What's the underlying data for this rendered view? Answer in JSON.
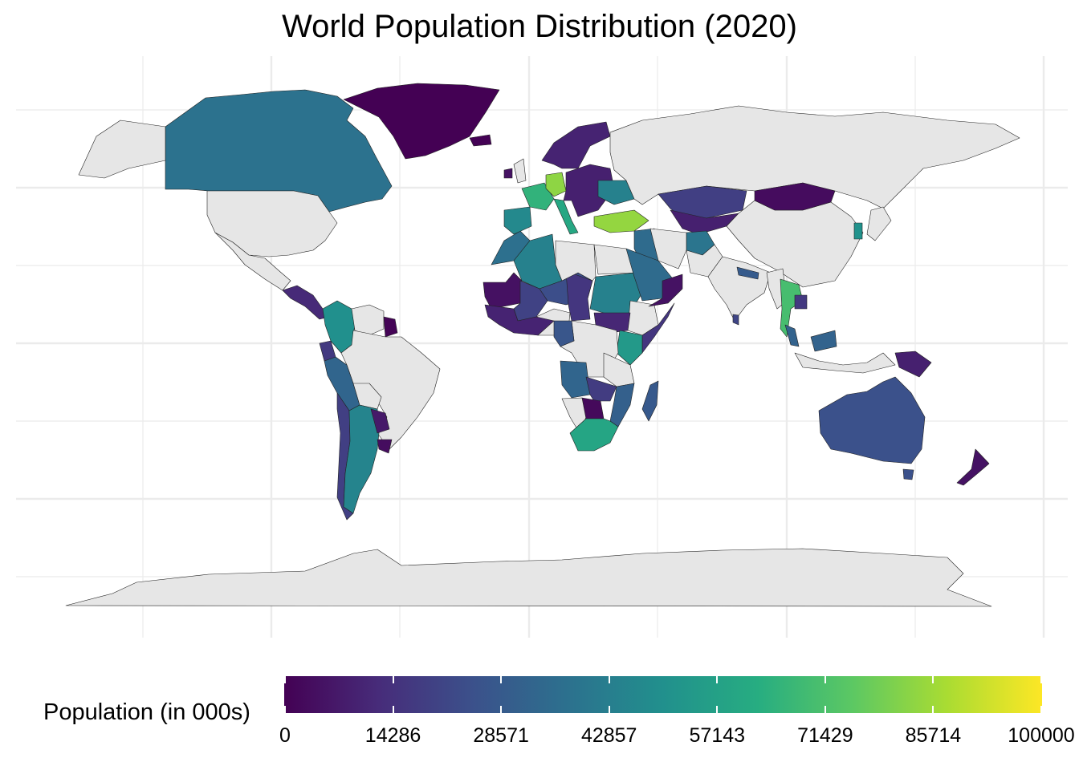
{
  "title": "World Population Distribution (2020)",
  "legend": {
    "title": "Population (in 000s)",
    "ticks": [
      "0",
      "14286",
      "28571",
      "42857",
      "57143",
      "71429",
      "85714",
      "100000"
    ],
    "min": 0,
    "max": 100000,
    "scale": "viridis",
    "colors": [
      "#440154",
      "#472c7a",
      "#3b518b",
      "#2c718e",
      "#21908d",
      "#27ad81",
      "#5cc863",
      "#aadc32",
      "#fde725"
    ],
    "position": "bottom"
  },
  "map": {
    "projection": "equirectangular",
    "no_data_color": "#e6e6e6",
    "grid": true,
    "regions": [
      {
        "id": "canada",
        "value": 38000
      },
      {
        "id": "greenland",
        "value": 56
      },
      {
        "id": "mexico",
        "value": null
      },
      {
        "id": "usa",
        "value": null
      },
      {
        "id": "central-america",
        "value": 12000
      },
      {
        "id": "colombia",
        "value": 50000
      },
      {
        "id": "venezuela",
        "value": null
      },
      {
        "id": "guyana",
        "value": 800
      },
      {
        "id": "brazil",
        "value": null
      },
      {
        "id": "peru",
        "value": 33000
      },
      {
        "id": "ecuador",
        "value": 17000
      },
      {
        "id": "bolivia",
        "value": null
      },
      {
        "id": "chile",
        "value": 19000
      },
      {
        "id": "argentina",
        "value": 45000
      },
      {
        "id": "paraguay",
        "value": 7000
      },
      {
        "id": "uruguay",
        "value": 3500
      },
      {
        "id": "morocco",
        "value": 37000
      },
      {
        "id": "algeria",
        "value": 44000
      },
      {
        "id": "mauritania",
        "value": 4600
      },
      {
        "id": "mali",
        "value": 20000
      },
      {
        "id": "niger",
        "value": 24000
      },
      {
        "id": "chad",
        "value": 16000
      },
      {
        "id": "nigeria",
        "value": null
      },
      {
        "id": "west-africa",
        "value": 10000
      },
      {
        "id": "libya",
        "value": null
      },
      {
        "id": "egypt",
        "value": null
      },
      {
        "id": "sudan",
        "value": 44000
      },
      {
        "id": "ethiopia",
        "value": null
      },
      {
        "id": "south-sudan",
        "value": 11000
      },
      {
        "id": "somalia",
        "value": 16000
      },
      {
        "id": "kenya",
        "value": 54000
      },
      {
        "id": "dr-congo",
        "value": null
      },
      {
        "id": "cameroon",
        "value": 27000
      },
      {
        "id": "angola",
        "value": 33000
      },
      {
        "id": "zambia",
        "value": 18000
      },
      {
        "id": "tanzania",
        "value": null
      },
      {
        "id": "mozambique",
        "value": 31000
      },
      {
        "id": "namibia",
        "value": null
      },
      {
        "id": "botswana",
        "value": 2400
      },
      {
        "id": "south-africa",
        "value": 59000
      },
      {
        "id": "madagascar",
        "value": 28000
      },
      {
        "id": "iberia",
        "value": 47000
      },
      {
        "id": "france",
        "value": 65000
      },
      {
        "id": "germany",
        "value": 83000
      },
      {
        "id": "italy",
        "value": 60000
      },
      {
        "id": "uk",
        "value": null
      },
      {
        "id": "ireland",
        "value": 5000
      },
      {
        "id": "scandinavia",
        "value": 10000
      },
      {
        "id": "iceland",
        "value": 360
      },
      {
        "id": "eastern-europe",
        "value": 9000
      },
      {
        "id": "ukraine",
        "value": 44000
      },
      {
        "id": "turkey",
        "value": 84000
      },
      {
        "id": "russia",
        "value": null
      },
      {
        "id": "kazakhstan",
        "value": 19000
      },
      {
        "id": "central-asia",
        "value": 9000
      },
      {
        "id": "afghanistan",
        "value": 39000
      },
      {
        "id": "middle-east",
        "value": 35000
      },
      {
        "id": "saudi-arabia",
        "value": 35000
      },
      {
        "id": "oman-yemen",
        "value": 5000
      },
      {
        "id": "iran",
        "value": null
      },
      {
        "id": "pakistan",
        "value": null
      },
      {
        "id": "india",
        "value": null
      },
      {
        "id": "china",
        "value": null
      },
      {
        "id": "mongolia",
        "value": 3300
      },
      {
        "id": "south-korea",
        "value": 51000
      },
      {
        "id": "japan",
        "value": null
      },
      {
        "id": "nepal",
        "value": 29000
      },
      {
        "id": "myanmar",
        "value": null
      },
      {
        "id": "thailand",
        "value": 70000
      },
      {
        "id": "cambodia",
        "value": 17000
      },
      {
        "id": "malaysia",
        "value": 32000
      },
      {
        "id": "indonesia",
        "value": null
      },
      {
        "id": "png",
        "value": 9000
      },
      {
        "id": "australia",
        "value": 25000
      },
      {
        "id": "tasmania",
        "value": 25000
      },
      {
        "id": "new-zealand",
        "value": 5000
      },
      {
        "id": "sri-lanka",
        "value": 21000
      },
      {
        "id": "antarctica",
        "value": null
      }
    ]
  }
}
